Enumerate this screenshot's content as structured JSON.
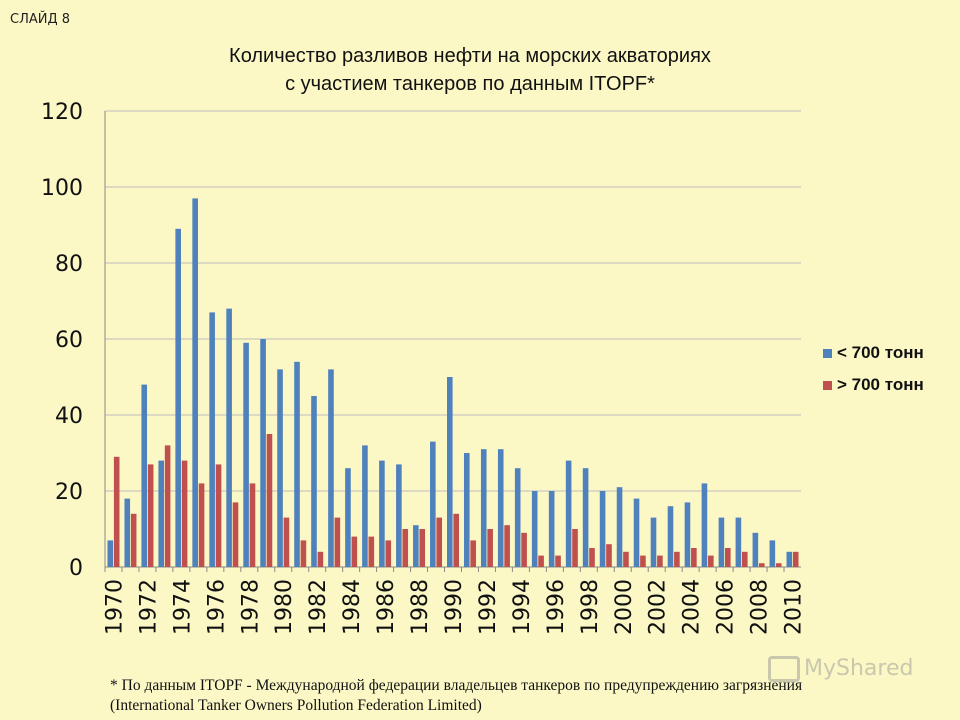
{
  "slide_label": "СЛАЙД 8",
  "watermark": "MyShared",
  "footnote": {
    "line1": "* По данным ITOPF - Международной федерации владельцев танкеров по предупреждению загрязнения",
    "line2": "(International Tanker Owners Pollution Federation Limited)"
  },
  "colors": {
    "small": "#4f81bd",
    "large": "#c0504d",
    "grid": "#bdbdbd",
    "axis": "#888888"
  },
  "chart_data": {
    "type": "bar",
    "title": [
      "Количество разливов нефти на морских акваториях",
      "с участием танкеров по данным ITOPF*"
    ],
    "xlabel": "",
    "ylabel": "",
    "ylim": [
      0,
      120
    ],
    "yticks": [
      0,
      20,
      40,
      60,
      80,
      100,
      120
    ],
    "grid": true,
    "legend_position": "right",
    "categories": [
      1970,
      1971,
      1972,
      1973,
      1974,
      1975,
      1976,
      1977,
      1978,
      1979,
      1980,
      1981,
      1982,
      1983,
      1984,
      1985,
      1986,
      1987,
      1988,
      1989,
      1990,
      1991,
      1992,
      1993,
      1994,
      1995,
      1996,
      1997,
      1998,
      1999,
      2000,
      2001,
      2002,
      2003,
      2004,
      2005,
      2006,
      2007,
      2008,
      2009,
      2010
    ],
    "tick_labels": [
      "1970",
      "1972",
      "1974",
      "1976",
      "1978",
      "1980",
      "1982",
      "1984",
      "1986",
      "1988",
      "1990",
      "1992",
      "1994",
      "1996",
      "1998",
      "2000",
      "2002",
      "2004",
      "2006",
      "2008",
      "2010"
    ],
    "series": [
      {
        "name": "< 700 тонн",
        "values": [
          7,
          18,
          48,
          28,
          89,
          97,
          67,
          68,
          59,
          60,
          52,
          54,
          45,
          52,
          26,
          32,
          28,
          27,
          11,
          33,
          50,
          30,
          31,
          31,
          26,
          20,
          20,
          28,
          26,
          20,
          21,
          18,
          13,
          16,
          17,
          22,
          13,
          13,
          9,
          7,
          4
        ]
      },
      {
        "name": "> 700 тонн",
        "values": [
          29,
          14,
          27,
          32,
          28,
          22,
          27,
          17,
          22,
          35,
          13,
          7,
          4,
          13,
          8,
          8,
          7,
          10,
          10,
          13,
          14,
          7,
          10,
          11,
          9,
          3,
          3,
          10,
          5,
          6,
          4,
          3,
          3,
          4,
          5,
          3,
          5,
          4,
          1,
          1,
          4
        ]
      }
    ]
  }
}
